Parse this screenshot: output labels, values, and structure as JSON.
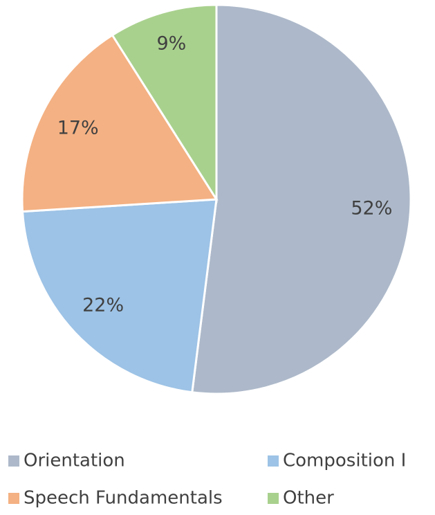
{
  "chart_data": {
    "type": "pie",
    "categories": [
      "Orientation",
      "Composition I",
      "Speech Fundamentals",
      "Other"
    ],
    "values": [
      52,
      22,
      17,
      9
    ],
    "value_labels": [
      "52%",
      "22%",
      "17%",
      "9%"
    ],
    "colors": [
      "#adb9ca",
      "#9dc3e6",
      "#f4b183",
      "#a9d18e"
    ]
  }
}
